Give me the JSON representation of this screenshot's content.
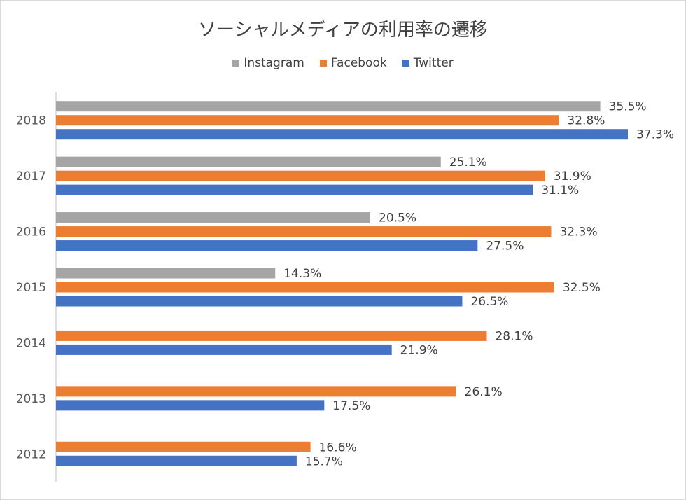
{
  "chart_data": {
    "type": "bar",
    "orientation": "horizontal",
    "title": "ソーシャルメディアの利用率の遷移",
    "categories": [
      "2018",
      "2017",
      "2016",
      "2015",
      "2014",
      "2013",
      "2012"
    ],
    "series": [
      {
        "name": "Instagram",
        "color": "#a5a5a5",
        "values": [
          35.5,
          25.1,
          20.5,
          14.3,
          null,
          null,
          null
        ]
      },
      {
        "name": "Facebook",
        "color": "#ed7d31",
        "values": [
          32.8,
          31.9,
          32.3,
          32.5,
          28.1,
          26.1,
          16.6
        ]
      },
      {
        "name": "Twitter",
        "color": "#4472c4",
        "values": [
          37.3,
          31.1,
          27.5,
          26.5,
          21.9,
          17.5,
          15.7
        ]
      }
    ],
    "data_labels": {
      "Instagram": [
        "35.5%",
        "25.1%",
        "20.5%",
        "14.3%",
        null,
        null,
        null
      ],
      "Facebook": [
        "32.8%",
        "31.9%",
        "32.3%",
        "32.5%",
        "28.1%",
        "26.1%",
        "16.6%"
      ],
      "Twitter": [
        "37.3%",
        "31.1%",
        "27.5%",
        "26.5%",
        "21.9%",
        "17.5%",
        "15.7%"
      ]
    },
    "value_unit": "%",
    "xlim": [
      0,
      37.3
    ],
    "legend_position": "top",
    "grid": false
  }
}
